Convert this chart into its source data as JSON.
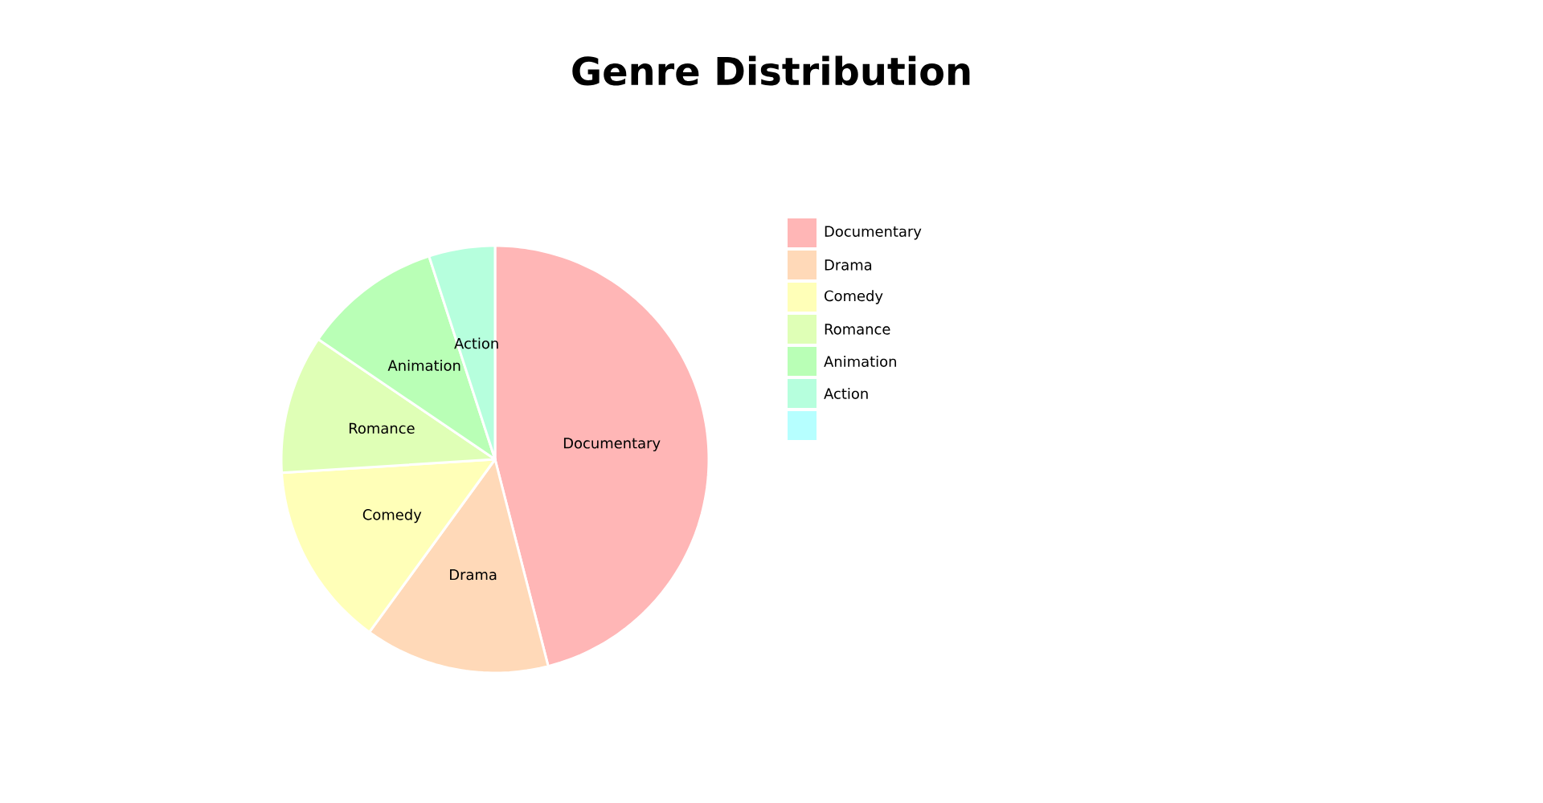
{
  "chart_data": {
    "type": "pie",
    "title": "Genre Distribution",
    "categories": [
      "Documentary",
      "Drama",
      "Comedy",
      "Romance",
      "Animation",
      "Action",
      null
    ],
    "values": [
      46,
      14,
      14,
      10.5,
      10.5,
      5,
      0
    ],
    "colors": [
      "#ffb6b6",
      "#ffd9b8",
      "#ffffb8",
      "#dfffb6",
      "#b9ffb6",
      "#b6ffdd",
      "#b6ffff"
    ],
    "legend": "right"
  }
}
